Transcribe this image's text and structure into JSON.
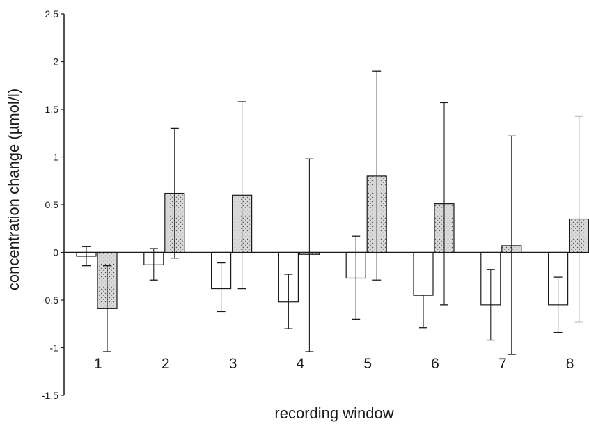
{
  "chart_data": {
    "type": "bar",
    "xlabel": "recording window",
    "ylabel": "concentration change (µmol/l)",
    "ylim": [
      -1.5,
      2.5
    ],
    "yticks": [
      "2.5",
      "2",
      "1.5",
      "1",
      "0.5",
      "0",
      "-0.5",
      "-1",
      "-1.5"
    ],
    "categories": [
      "1",
      "2",
      "3",
      "4",
      "5",
      "6",
      "7",
      "8"
    ],
    "grid": false,
    "series": [
      {
        "style": "open",
        "values": [
          -0.04,
          -0.13,
          -0.38,
          -0.52,
          -0.27,
          -0.45,
          -0.55,
          -0.55
        ],
        "err_low": [
          -0.14,
          -0.29,
          -0.62,
          -0.8,
          -0.7,
          -0.79,
          -0.92,
          -0.84
        ],
        "err_high": [
          0.06,
          0.04,
          -0.11,
          -0.23,
          0.17,
          null,
          -0.18,
          -0.26
        ]
      },
      {
        "style": "stippled",
        "values": [
          -0.59,
          0.62,
          0.6,
          -0.02,
          0.8,
          0.51,
          0.07,
          0.35
        ],
        "err_low": [
          -1.04,
          -0.06,
          -0.38,
          -1.04,
          -0.29,
          -0.55,
          -1.07,
          -0.73
        ],
        "err_high": [
          -0.14,
          1.3,
          1.58,
          0.98,
          1.9,
          1.57,
          1.22,
          1.43
        ]
      }
    ],
    "colors": {
      "open_fill": "#ffffff",
      "stipple_fill": "#d9d9d9",
      "ink": "#1a1a1a"
    }
  }
}
